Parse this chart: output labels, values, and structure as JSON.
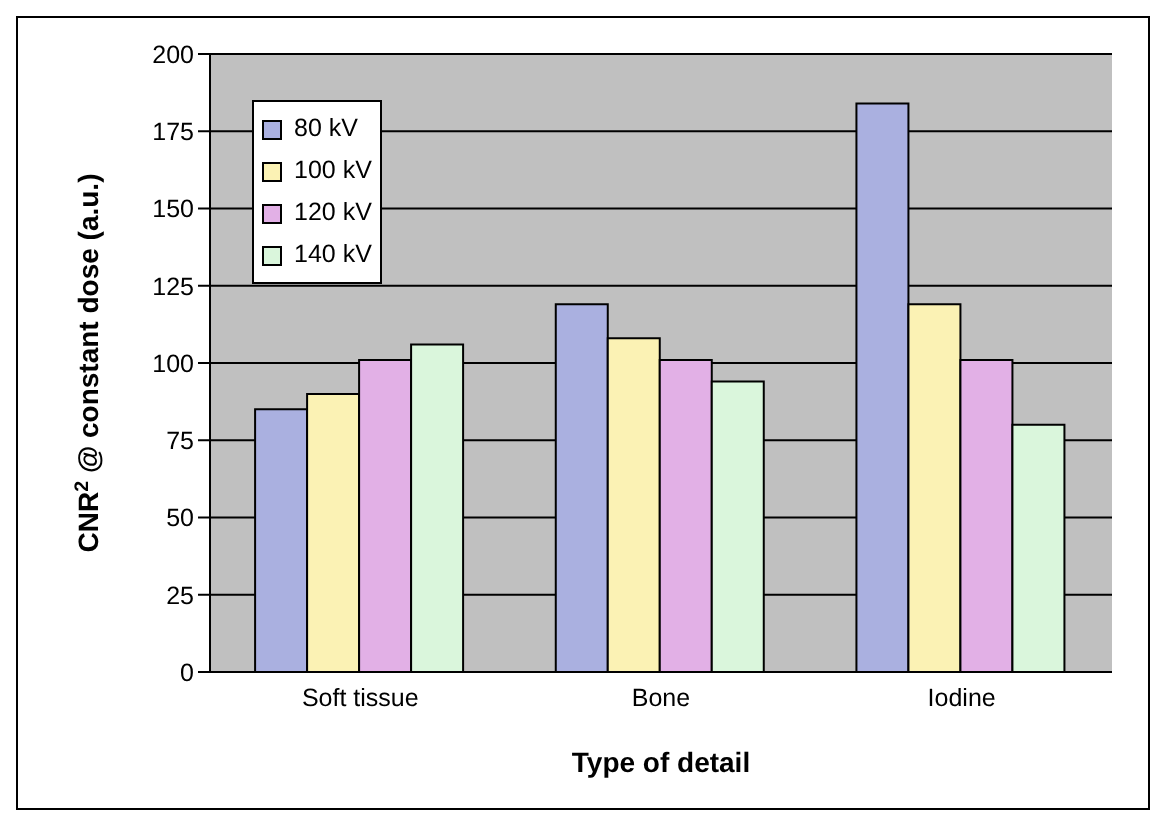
{
  "chart_data": {
    "type": "bar",
    "xlabel": "Type of detail",
    "ylabel": "CNR$^{2}$ @ constant dose (a.u.)",
    "categories": [
      "Soft tissue",
      "Bone",
      "Iodine"
    ],
    "series": [
      {
        "name": "80 kV",
        "color": "#aab0e0",
        "values": [
          85,
          119,
          184
        ]
      },
      {
        "name": "100 kV",
        "color": "#fbf2b4",
        "values": [
          90,
          108,
          119
        ]
      },
      {
        "name": "120 kV",
        "color": "#e2b0e6",
        "values": [
          101,
          101,
          101
        ]
      },
      {
        "name": "140 kV",
        "color": "#daf6dc",
        "values": [
          106,
          94,
          80
        ]
      }
    ],
    "ylim": [
      0,
      200
    ],
    "yticks": [
      0,
      25,
      50,
      75,
      100,
      125,
      150,
      175,
      200
    ],
    "grid": "y",
    "legend": "top left"
  }
}
